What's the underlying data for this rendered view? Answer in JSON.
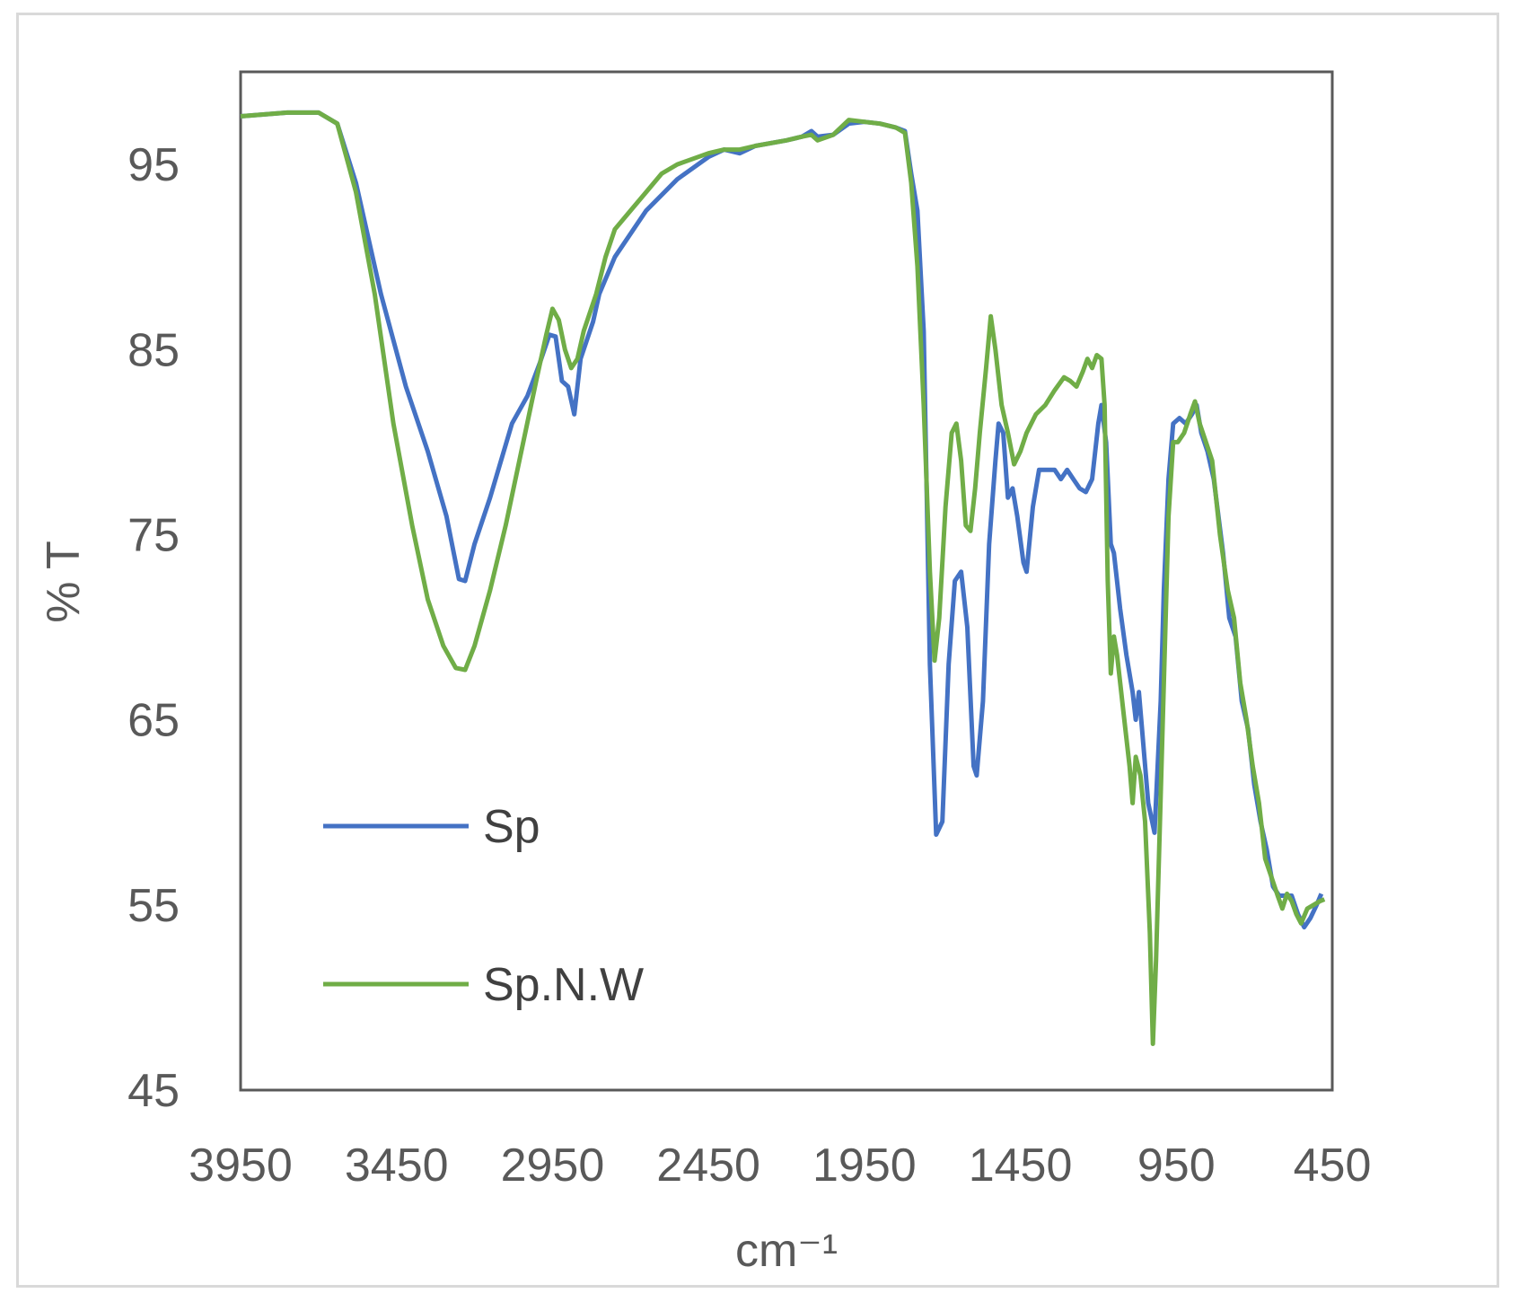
{
  "chart_data": {
    "type": "line",
    "xlabel": "cm⁻¹",
    "ylabel": "% T",
    "xlim": [
      3950,
      450
    ],
    "ylim": [
      45,
      100
    ],
    "x_reversed": true,
    "x_ticks": [
      "3950",
      "3450",
      "2950",
      "2450",
      "1950",
      "1450",
      "950",
      "450"
    ],
    "y_ticks": [
      "95",
      "85",
      "75",
      "65",
      "55",
      "45"
    ],
    "grid": false,
    "legend_position": "bottom-left (inside plot)",
    "series": [
      {
        "name": "Sp",
        "color": "#4472c4",
        "points": [
          [
            3950,
            97.6
          ],
          [
            3800,
            97.8
          ],
          [
            3700,
            97.8
          ],
          [
            3640,
            97.2
          ],
          [
            3580,
            94.0
          ],
          [
            3500,
            88.0
          ],
          [
            3420,
            83.0
          ],
          [
            3350,
            79.5
          ],
          [
            3290,
            76.0
          ],
          [
            3250,
            72.6
          ],
          [
            3230,
            72.5
          ],
          [
            3200,
            74.5
          ],
          [
            3150,
            77.0
          ],
          [
            3080,
            81.0
          ],
          [
            3030,
            82.5
          ],
          [
            2990,
            84.3
          ],
          [
            2960,
            85.8
          ],
          [
            2940,
            85.7
          ],
          [
            2920,
            83.3
          ],
          [
            2900,
            83.0
          ],
          [
            2880,
            81.5
          ],
          [
            2860,
            84.5
          ],
          [
            2820,
            86.5
          ],
          [
            2800,
            88.0
          ],
          [
            2750,
            90.0
          ],
          [
            2650,
            92.5
          ],
          [
            2550,
            94.2
          ],
          [
            2450,
            95.4
          ],
          [
            2400,
            95.8
          ],
          [
            2350,
            95.6
          ],
          [
            2300,
            96.0
          ],
          [
            2200,
            96.3
          ],
          [
            2150,
            96.5
          ],
          [
            2120,
            96.8
          ],
          [
            2100,
            96.5
          ],
          [
            2050,
            96.6
          ],
          [
            2000,
            97.2
          ],
          [
            1950,
            97.3
          ],
          [
            1900,
            97.2
          ],
          [
            1850,
            97.0
          ],
          [
            1820,
            96.8
          ],
          [
            1800,
            94.5
          ],
          [
            1780,
            92.5
          ],
          [
            1760,
            86.0
          ],
          [
            1740,
            68.0
          ],
          [
            1720,
            58.8
          ],
          [
            1700,
            59.5
          ],
          [
            1680,
            68.0
          ],
          [
            1660,
            72.5
          ],
          [
            1640,
            73.0
          ],
          [
            1620,
            70.0
          ],
          [
            1600,
            62.5
          ],
          [
            1590,
            62.0
          ],
          [
            1570,
            66.0
          ],
          [
            1550,
            74.5
          ],
          [
            1530,
            79.0
          ],
          [
            1520,
            81.0
          ],
          [
            1505,
            80.5
          ],
          [
            1490,
            77.0
          ],
          [
            1475,
            77.5
          ],
          [
            1460,
            76.0
          ],
          [
            1440,
            73.5
          ],
          [
            1430,
            73.0
          ],
          [
            1410,
            76.5
          ],
          [
            1390,
            78.5
          ],
          [
            1370,
            78.5
          ],
          [
            1340,
            78.5
          ],
          [
            1320,
            78.0
          ],
          [
            1300,
            78.5
          ],
          [
            1280,
            78.0
          ],
          [
            1260,
            77.5
          ],
          [
            1240,
            77.3
          ],
          [
            1220,
            78.0
          ],
          [
            1200,
            81.0
          ],
          [
            1190,
            82.0
          ],
          [
            1175,
            80.0
          ],
          [
            1160,
            74.5
          ],
          [
            1150,
            74.0
          ],
          [
            1130,
            71.0
          ],
          [
            1110,
            68.5
          ],
          [
            1090,
            66.5
          ],
          [
            1080,
            65.0
          ],
          [
            1070,
            66.5
          ],
          [
            1060,
            64.5
          ],
          [
            1040,
            60.5
          ],
          [
            1020,
            58.9
          ],
          [
            1000,
            66.0
          ],
          [
            990,
            72.0
          ],
          [
            975,
            78.0
          ],
          [
            960,
            81.0
          ],
          [
            940,
            81.3
          ],
          [
            920,
            81.0
          ],
          [
            900,
            81.5
          ],
          [
            885,
            82.0
          ],
          [
            870,
            80.5
          ],
          [
            850,
            79.5
          ],
          [
            830,
            78.0
          ],
          [
            800,
            74.0
          ],
          [
            780,
            70.5
          ],
          [
            760,
            69.5
          ],
          [
            740,
            66.0
          ],
          [
            720,
            64.5
          ],
          [
            700,
            61.5
          ],
          [
            680,
            59.5
          ],
          [
            660,
            58.0
          ],
          [
            640,
            56.0
          ],
          [
            620,
            55.5
          ],
          [
            600,
            55.5
          ],
          [
            580,
            55.5
          ],
          [
            560,
            54.5
          ],
          [
            540,
            53.8
          ],
          [
            520,
            54.3
          ],
          [
            500,
            55.0
          ],
          [
            485,
            55.6
          ]
        ]
      },
      {
        "name": "Sp.N.W",
        "color": "#70ad47",
        "points": [
          [
            3950,
            97.6
          ],
          [
            3800,
            97.8
          ],
          [
            3700,
            97.8
          ],
          [
            3640,
            97.2
          ],
          [
            3580,
            93.5
          ],
          [
            3520,
            88.0
          ],
          [
            3460,
            81.0
          ],
          [
            3400,
            75.5
          ],
          [
            3350,
            71.5
          ],
          [
            3300,
            69.0
          ],
          [
            3260,
            67.8
          ],
          [
            3230,
            67.7
          ],
          [
            3200,
            69.0
          ],
          [
            3150,
            72.0
          ],
          [
            3100,
            75.5
          ],
          [
            3050,
            79.5
          ],
          [
            3000,
            83.5
          ],
          [
            2970,
            85.8
          ],
          [
            2950,
            87.2
          ],
          [
            2930,
            86.6
          ],
          [
            2910,
            85.0
          ],
          [
            2890,
            84.0
          ],
          [
            2870,
            84.5
          ],
          [
            2850,
            86.0
          ],
          [
            2810,
            88.0
          ],
          [
            2780,
            90.0
          ],
          [
            2750,
            91.5
          ],
          [
            2700,
            92.5
          ],
          [
            2650,
            93.5
          ],
          [
            2600,
            94.5
          ],
          [
            2550,
            95.0
          ],
          [
            2450,
            95.6
          ],
          [
            2400,
            95.8
          ],
          [
            2350,
            95.8
          ],
          [
            2300,
            96.0
          ],
          [
            2200,
            96.3
          ],
          [
            2150,
            96.5
          ],
          [
            2120,
            96.6
          ],
          [
            2100,
            96.3
          ],
          [
            2050,
            96.6
          ],
          [
            2000,
            97.4
          ],
          [
            1950,
            97.3
          ],
          [
            1900,
            97.2
          ],
          [
            1850,
            97.0
          ],
          [
            1820,
            96.7
          ],
          [
            1800,
            94.0
          ],
          [
            1780,
            89.5
          ],
          [
            1760,
            82.0
          ],
          [
            1740,
            73.0
          ],
          [
            1725,
            68.2
          ],
          [
            1710,
            70.5
          ],
          [
            1690,
            76.5
          ],
          [
            1670,
            80.5
          ],
          [
            1655,
            81.0
          ],
          [
            1640,
            79.0
          ],
          [
            1625,
            75.5
          ],
          [
            1610,
            75.2
          ],
          [
            1595,
            77.5
          ],
          [
            1580,
            80.5
          ],
          [
            1560,
            84.0
          ],
          [
            1545,
            86.8
          ],
          [
            1530,
            85.0
          ],
          [
            1510,
            82.0
          ],
          [
            1490,
            80.5
          ],
          [
            1470,
            78.8
          ],
          [
            1450,
            79.5
          ],
          [
            1430,
            80.5
          ],
          [
            1400,
            81.5
          ],
          [
            1370,
            82.0
          ],
          [
            1340,
            82.8
          ],
          [
            1310,
            83.5
          ],
          [
            1290,
            83.3
          ],
          [
            1270,
            83.0
          ],
          [
            1250,
            83.8
          ],
          [
            1235,
            84.5
          ],
          [
            1220,
            84.0
          ],
          [
            1205,
            84.7
          ],
          [
            1190,
            84.5
          ],
          [
            1180,
            82.0
          ],
          [
            1170,
            72.5
          ],
          [
            1160,
            67.5
          ],
          [
            1150,
            69.5
          ],
          [
            1140,
            68.5
          ],
          [
            1120,
            65.5
          ],
          [
            1100,
            62.5
          ],
          [
            1090,
            60.5
          ],
          [
            1080,
            63.0
          ],
          [
            1065,
            62.0
          ],
          [
            1050,
            59.5
          ],
          [
            1035,
            53.5
          ],
          [
            1025,
            47.5
          ],
          [
            1015,
            52.0
          ],
          [
            1005,
            58.0
          ],
          [
            990,
            67.0
          ],
          [
            975,
            76.0
          ],
          [
            960,
            80.0
          ],
          [
            945,
            80.0
          ],
          [
            925,
            80.5
          ],
          [
            905,
            81.5
          ],
          [
            890,
            82.2
          ],
          [
            875,
            81.0
          ],
          [
            855,
            80.0
          ],
          [
            835,
            79.0
          ],
          [
            810,
            75.0
          ],
          [
            785,
            72.0
          ],
          [
            765,
            70.5
          ],
          [
            745,
            67.0
          ],
          [
            725,
            65.0
          ],
          [
            705,
            62.5
          ],
          [
            685,
            60.5
          ],
          [
            665,
            57.5
          ],
          [
            645,
            56.5
          ],
          [
            625,
            55.5
          ],
          [
            610,
            54.8
          ],
          [
            595,
            55.6
          ],
          [
            580,
            55.2
          ],
          [
            565,
            54.5
          ],
          [
            550,
            54.0
          ],
          [
            530,
            54.8
          ],
          [
            510,
            55.0
          ],
          [
            490,
            55.2
          ],
          [
            475,
            55.3
          ]
        ]
      }
    ]
  }
}
